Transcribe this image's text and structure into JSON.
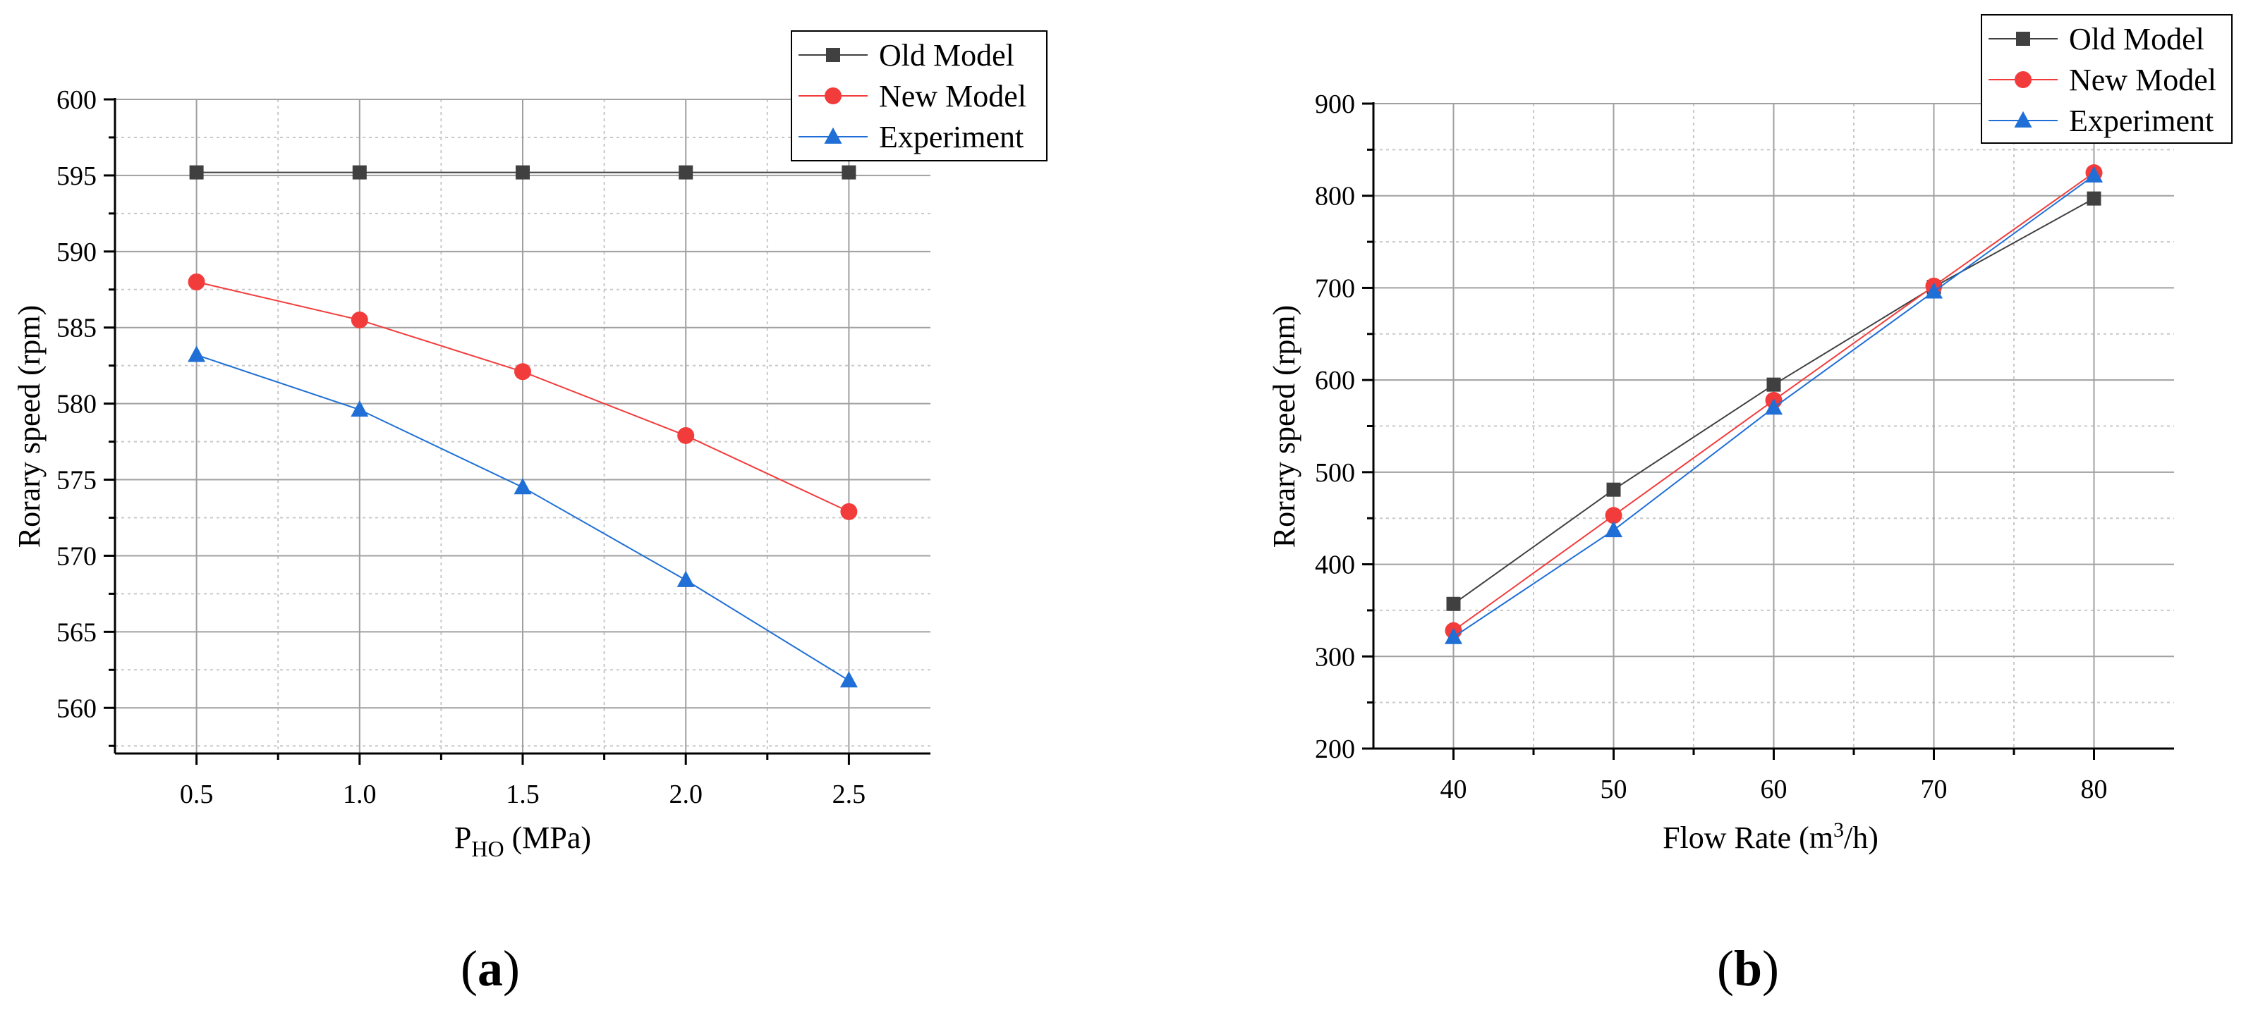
{
  "chart_data": [
    {
      "type": "line",
      "panel_label": "(a)",
      "xlabel": "P",
      "xlabel_sub": "HO",
      "xlabel_unit": " (MPa)",
      "ylabel": "Rorary speed (rpm)",
      "x": [
        0.5,
        1.0,
        1.5,
        2.0,
        2.5
      ],
      "x_tick_labels": [
        "0.5",
        "1.0",
        "1.5",
        "2.0",
        "2.5"
      ],
      "xlim": [
        0.25,
        2.75
      ],
      "ylim": [
        557,
        600
      ],
      "y_ticks": [
        560,
        565,
        570,
        575,
        580,
        585,
        590,
        595,
        600
      ],
      "y_tick_labels": [
        "560",
        "565",
        "570",
        "575",
        "580",
        "585",
        "590",
        "595",
        "600"
      ],
      "grid": true,
      "legend_position": "top-right",
      "series": [
        {
          "name": "Old Model",
          "color": "#404040",
          "marker": "square",
          "values": [
            595.2,
            595.2,
            595.2,
            595.2,
            595.2
          ]
        },
        {
          "name": "New Model",
          "color": "#f23c3c",
          "marker": "circle",
          "values": [
            588.0,
            585.5,
            582.1,
            577.9,
            572.9
          ]
        },
        {
          "name": "Experiment",
          "color": "#1f6fd6",
          "marker": "triangle",
          "values": [
            583.2,
            579.6,
            574.5,
            568.4,
            561.8
          ]
        }
      ]
    },
    {
      "type": "line",
      "panel_label": "(b)",
      "xlabel": "Flow Rate (m",
      "xlabel_sup": "3",
      "xlabel_unit": "/h)",
      "ylabel": "Rorary speed (rpm)",
      "x": [
        40,
        50,
        60,
        70,
        80
      ],
      "x_tick_labels": [
        "40",
        "50",
        "60",
        "70",
        "80"
      ],
      "xlim": [
        35,
        85
      ],
      "ylim": [
        200,
        900
      ],
      "y_ticks": [
        200,
        300,
        400,
        500,
        600,
        700,
        800,
        900
      ],
      "y_tick_labels": [
        "200",
        "300",
        "400",
        "500",
        "600",
        "700",
        "800",
        "900"
      ],
      "grid": true,
      "legend_position": "top-right",
      "series": [
        {
          "name": "Old Model",
          "color": "#404040",
          "marker": "square",
          "values": [
            357,
            481,
            595,
            701,
            797
          ]
        },
        {
          "name": "New Model",
          "color": "#f23c3c",
          "marker": "circle",
          "values": [
            328,
            453,
            578,
            702,
            825
          ]
        },
        {
          "name": "Experiment",
          "color": "#1f6fd6",
          "marker": "triangle",
          "values": [
            321,
            437,
            570,
            696,
            822
          ]
        }
      ]
    }
  ]
}
